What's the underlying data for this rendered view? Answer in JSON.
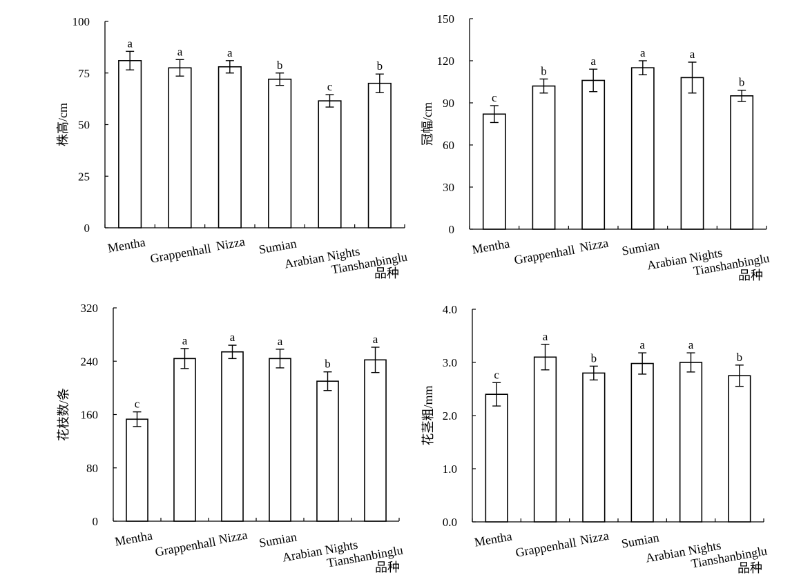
{
  "chart_data": [
    {
      "type": "bar",
      "xlabel": "品种",
      "ylabel": "株高/cm",
      "ylim": [
        0,
        100
      ],
      "yticks": [
        "0",
        "25",
        "50",
        "75",
        "100"
      ],
      "categories": [
        "Mentha",
        "Grappenhall",
        "Nizza",
        "Sumian",
        "Arabian Nights",
        "Tianshanbinglu"
      ],
      "values": [
        81,
        77.5,
        78,
        72,
        61.5,
        70
      ],
      "errors": [
        4.5,
        4,
        3,
        3,
        3,
        4.5
      ],
      "significance": [
        "a",
        "a",
        "a",
        "b",
        "c",
        "b"
      ],
      "grid": false
    },
    {
      "type": "bar",
      "xlabel": "品种",
      "ylabel": "冠幅/cm",
      "ylim": [
        0,
        150
      ],
      "yticks": [
        "0",
        "30",
        "60",
        "90",
        "120",
        "150"
      ],
      "categories": [
        "Mentha",
        "Grappenhall",
        "Nizza",
        "Sumian",
        "Arabian Nights",
        "Tianshanbinglu"
      ],
      "values": [
        82,
        102,
        106,
        115,
        108,
        95
      ],
      "errors": [
        6,
        5,
        8,
        5,
        11,
        4
      ],
      "significance": [
        "c",
        "b",
        "a",
        "a",
        "a",
        "b"
      ],
      "grid": false
    },
    {
      "type": "bar",
      "xlabel": "品种",
      "ylabel": "花枝数/条",
      "ylim": [
        0,
        320
      ],
      "yticks": [
        "0",
        "80",
        "160",
        "240",
        "320"
      ],
      "categories": [
        "Mentha",
        "Grappenhall",
        "Nizza",
        "Sumian",
        "Arabian Nights",
        "Tianshanbinglu"
      ],
      "values": [
        153,
        244,
        254,
        244,
        210,
        242
      ],
      "errors": [
        11,
        15,
        10,
        14,
        14,
        19
      ],
      "significance": [
        "c",
        "a",
        "a",
        "a",
        "b",
        "a"
      ],
      "grid": false
    },
    {
      "type": "bar",
      "xlabel": "品种",
      "ylabel": "花茎粗/mm",
      "ylim": [
        0,
        4
      ],
      "yticks": [
        "0.0",
        "1.0",
        "2.0",
        "3.0",
        "4.0"
      ],
      "categories": [
        "Mentha",
        "Grappenhall",
        "Nizza",
        "Sumian",
        "Arabian Nights",
        "Tianshanbinglu"
      ],
      "values": [
        2.4,
        3.1,
        2.8,
        2.98,
        3.0,
        2.75
      ],
      "errors": [
        0.22,
        0.24,
        0.13,
        0.2,
        0.18,
        0.2
      ],
      "significance": [
        "c",
        "a",
        "b",
        "a",
        "a",
        "b"
      ],
      "grid": false
    }
  ]
}
